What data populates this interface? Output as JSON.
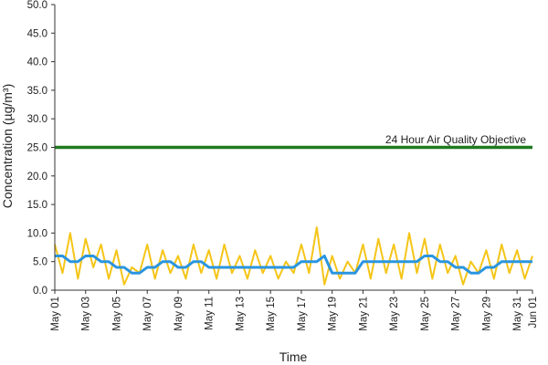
{
  "chart_data": {
    "type": "line",
    "title": "",
    "xlabel": "Time",
    "ylabel": "Concentration (µg/m³)",
    "ylim": [
      0,
      50
    ],
    "y_ticks": [
      "0.0",
      "5.0",
      "10.0",
      "15.0",
      "20.0",
      "25.0",
      "30.0",
      "35.0",
      "40.0",
      "45.0",
      "50.0"
    ],
    "x_range": [
      "May 01",
      "Jun 01"
    ],
    "x_ticks": [
      "May 01",
      "May 03",
      "May 05",
      "May 07",
      "May 09",
      "May 11",
      "May 13",
      "May 15",
      "May 17",
      "May 19",
      "May 21",
      "May 23",
      "May 25",
      "May 27",
      "May 29",
      "May 31",
      "Jun 01"
    ],
    "grid": false,
    "legend": "none",
    "annotations": [
      {
        "text": "24 Hour Air Quality Objective",
        "x": "May 31",
        "y": 25
      }
    ],
    "series": [
      {
        "kind": "hourly",
        "color": "#f5c518",
        "x": [
          "May 01",
          "May 01 12:00",
          "May 02",
          "May 02 12:00",
          "May 03",
          "May 03 12:00",
          "May 04",
          "May 04 12:00",
          "May 05",
          "May 05 12:00",
          "May 06",
          "May 06 12:00",
          "May 07",
          "May 07 12:00",
          "May 08",
          "May 08 12:00",
          "May 09",
          "May 09 12:00",
          "May 10",
          "May 10 12:00",
          "May 11",
          "May 11 12:00",
          "May 12",
          "May 12 12:00",
          "May 13",
          "May 13 12:00",
          "May 14",
          "May 14 12:00",
          "May 15",
          "May 15 12:00",
          "May 16",
          "May 16 12:00",
          "May 17",
          "May 17 12:00",
          "May 18",
          "May 18 12:00",
          "May 19",
          "May 19 12:00",
          "May 20",
          "May 20 12:00",
          "May 21",
          "May 21 12:00",
          "May 22",
          "May 22 12:00",
          "May 23",
          "May 23 12:00",
          "May 24",
          "May 24 12:00",
          "May 25",
          "May 25 12:00",
          "May 26",
          "May 26 12:00",
          "May 27",
          "May 27 12:00",
          "May 28",
          "May 28 12:00",
          "May 29",
          "May 29 12:00",
          "May 30",
          "May 30 12:00",
          "May 31",
          "May 31 12:00",
          "Jun 01"
        ],
        "values": [
          8,
          3,
          10,
          2,
          9,
          4,
          8,
          2,
          7,
          1,
          4,
          3,
          8,
          2,
          7,
          3,
          6,
          2,
          8,
          3,
          7,
          2,
          8,
          3,
          6,
          2,
          7,
          3,
          6,
          2,
          5,
          3,
          8,
          3,
          11,
          1,
          6,
          2,
          5,
          3,
          8,
          2,
          9,
          3,
          8,
          2,
          10,
          3,
          9,
          2,
          8,
          3,
          6,
          1,
          5,
          3,
          7,
          2,
          8,
          3,
          7,
          2,
          6
        ]
      },
      {
        "kind": "24-hour average",
        "color": "#2a95e0",
        "x": [
          "May 01",
          "May 01 12:00",
          "May 02",
          "May 02 12:00",
          "May 03",
          "May 03 12:00",
          "May 04",
          "May 04 12:00",
          "May 05",
          "May 05 12:00",
          "May 06",
          "May 06 12:00",
          "May 07",
          "May 07 12:00",
          "May 08",
          "May 08 12:00",
          "May 09",
          "May 09 12:00",
          "May 10",
          "May 10 12:00",
          "May 11",
          "May 11 12:00",
          "May 12",
          "May 12 12:00",
          "May 13",
          "May 13 12:00",
          "May 14",
          "May 14 12:00",
          "May 15",
          "May 15 12:00",
          "May 16",
          "May 16 12:00",
          "May 17",
          "May 17 12:00",
          "May 18",
          "May 18 12:00",
          "May 19",
          "May 19 12:00",
          "May 20",
          "May 20 12:00",
          "May 21",
          "May 21 12:00",
          "May 22",
          "May 22 12:00",
          "May 23",
          "May 23 12:00",
          "May 24",
          "May 24 12:00",
          "May 25",
          "May 25 12:00",
          "May 26",
          "May 26 12:00",
          "May 27",
          "May 27 12:00",
          "May 28",
          "May 28 12:00",
          "May 29",
          "May 29 12:00",
          "May 30",
          "May 30 12:00",
          "May 31",
          "May 31 12:00",
          "Jun 01"
        ],
        "values": [
          6,
          6,
          5,
          5,
          6,
          6,
          5,
          5,
          4,
          4,
          3,
          3,
          4,
          4,
          5,
          5,
          4,
          4,
          5,
          5,
          4,
          4,
          4,
          4,
          4,
          4,
          4,
          4,
          4,
          4,
          4,
          4,
          5,
          5,
          5,
          6,
          3,
          3,
          3,
          3,
          5,
          5,
          5,
          5,
          5,
          5,
          5,
          5,
          6,
          6,
          5,
          5,
          4,
          4,
          3,
          3,
          4,
          4,
          5,
          5,
          5,
          5,
          5
        ]
      },
      {
        "kind": "objective",
        "color": "#1f7a1f",
        "x": [
          "May 01",
          "Jun 01"
        ],
        "values": [
          25,
          25
        ]
      }
    ]
  }
}
